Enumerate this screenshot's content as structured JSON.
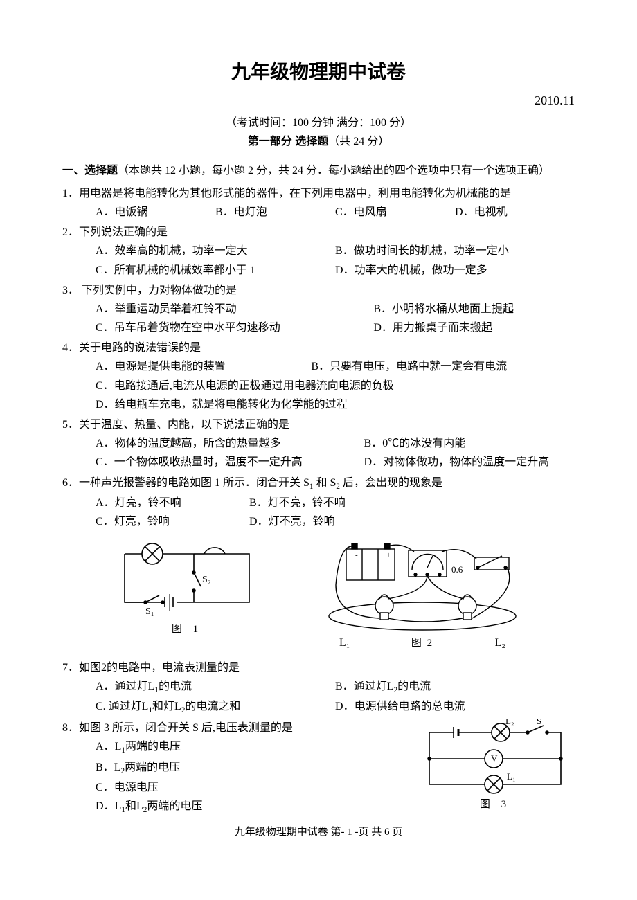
{
  "header": {
    "title": "九年级物理期中试卷",
    "date": "2010.11",
    "exam_meta": "（考试时间：100 分钟  满分：100 分）",
    "part_label": "第一部分  选择题",
    "part_points": "（共 24 分）"
  },
  "section_intro": {
    "label": "一、选择题",
    "detail": "（本题共 12 小题，每小题 2 分，共 24 分．每小题给出的四个选项中只有一个选项正确）"
  },
  "questions": [
    {
      "num": "1．",
      "stem": "用电器是将电能转化为其他形式能的器件，在下列用电器中，利用电能转化为机械能的是",
      "opts": [
        {
          "k": "A．",
          "t": "电饭锅"
        },
        {
          "k": "B．",
          "t": "电灯泡"
        },
        {
          "k": "C．",
          "t": "电风扇"
        },
        {
          "k": "D．",
          "t": "电视机"
        }
      ],
      "layout": "row4"
    },
    {
      "num": "2．",
      "stem": "下列说法正确的是",
      "opts": [
        {
          "k": "A．",
          "t": "效率高的机械，功率一定大"
        },
        {
          "k": "B．",
          "t": "做功时间长的机械，功率一定小"
        },
        {
          "k": "C．",
          "t": "所有机械的机械效率都小于 1"
        },
        {
          "k": "D．",
          "t": "功率大的机械，做功一定多"
        }
      ],
      "layout": "row2"
    },
    {
      "num": "3．",
      "stem": " 下列实例中，力对物体做功的是",
      "opts": [
        {
          "k": "A．",
          "t": "举重运动员举着杠铃不动"
        },
        {
          "k": "B．",
          "t": "小明将水桶从地面上提起"
        },
        {
          "k": "C．",
          "t": "吊车吊着货物在空中水平匀速移动"
        },
        {
          "k": "D．",
          "t": "用力搬桌子而未搬起"
        }
      ],
      "layout": "row2wide"
    },
    {
      "num": "4．",
      "stem": "关于电路的说法错误的是",
      "opts": [
        {
          "k": "A．",
          "t": "电源是提供电能的装置"
        },
        {
          "k": "B．",
          "t": "只要有电压，电路中就一定会有电流"
        },
        {
          "k": "C．",
          "t": "电路接通后,电流从电源的正极通过用电器流向电源的负极"
        },
        {
          "k": "D．",
          "t": "给电瓶车充电，就是将电能转化为化学能的过程"
        }
      ],
      "layout": "col"
    },
    {
      "num": "5．",
      "stem": "关于温度、热量、内能，以下说法正确的是",
      "opts": [
        {
          "k": "A．",
          "t": "物体的温度越高，所含的热量越多"
        },
        {
          "k": "B．",
          "t": "0℃的冰没有内能"
        },
        {
          "k": "C．",
          "t": "一个物体吸收热量时，温度不一定升高"
        },
        {
          "k": "D．",
          "t": "对物体做功，物体的温度一定升高"
        }
      ],
      "layout": "row2b"
    },
    {
      "num": "6．",
      "stem_html": "一种声光报警器的电路如图 1 所示．闭合开关 S<sub>1</sub> 和 S<sub>2</sub> 后，会出现的现象是",
      "opts": [
        {
          "k": "A．",
          "t": "灯亮，铃不响"
        },
        {
          "k": "B．",
          "t": "灯不亮，铃不响"
        },
        {
          "k": "C．",
          "t": "灯亮，铃响"
        },
        {
          "k": "D．",
          "t": "灯不亮，铃响"
        }
      ],
      "layout": "row2c"
    },
    {
      "num": "7．",
      "stem": "如图2的电路中，电流表测量的是",
      "opts": [
        {
          "k": "A．",
          "t_html": "通过灯L<sub>1</sub>的电流"
        },
        {
          "k": "B．",
          "t_html": "通过灯L<sub>2</sub>的电流"
        },
        {
          "k": "C. ",
          "t_html": "通过灯L<sub>1</sub>和灯L<sub>2</sub>的电流之和"
        },
        {
          "k": "D．",
          "t": "电源供给电路的总电流"
        }
      ],
      "layout": "row2"
    },
    {
      "num": "8．",
      "stem": "如图 3 所示，闭合开关 S 后,电压表测量的是",
      "opts": [
        {
          "k": "A．",
          "t_html": "L<sub>1</sub>两端的电压"
        },
        {
          "k": "B．",
          "t_html": "L<sub>2</sub>两端的电压"
        },
        {
          "k": "C．",
          "t": "电源电压"
        },
        {
          "k": "D．",
          "t_html": "L<sub>1</sub>和L<sub>2</sub>两端的电压"
        }
      ],
      "layout": "col"
    }
  ],
  "figures": {
    "fig1": {
      "caption": "图  1",
      "labels": {
        "s1": "S₁",
        "s2": "S₂"
      },
      "colors": {
        "stroke": "#000",
        "fill": "#fff"
      }
    },
    "fig2": {
      "caption": "图  2",
      "labels": {
        "l1": "L₁",
        "l2": "L₂",
        "reading": "0.6"
      },
      "colors": {
        "stroke": "#000",
        "fill": "#fff"
      }
    },
    "fig3": {
      "caption": "图  3",
      "labels": {
        "l1": "L₁",
        "l2": "L₂",
        "s": "S",
        "v": "V"
      },
      "colors": {
        "stroke": "#000",
        "fill": "#fff"
      }
    }
  },
  "footer": {
    "text": "九年级物理期中试卷    第- 1 -页  共 6 页"
  },
  "style": {
    "page_bg": "#ffffff",
    "text_color": "#000000",
    "body_fontsize": 16,
    "title_fontsize": 28
  }
}
